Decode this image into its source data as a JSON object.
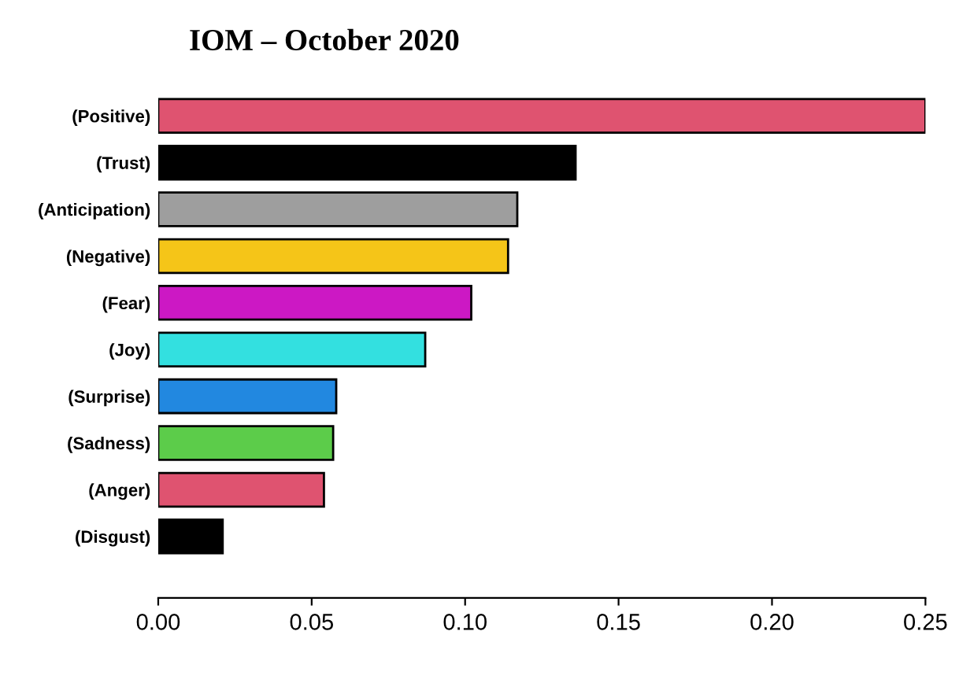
{
  "chart_data": {
    "type": "bar",
    "orientation": "horizontal",
    "title": "IOM – October 2020",
    "categories": [
      "(Positive)",
      "(Trust)",
      "(Anticipation)",
      "(Negative)",
      "(Fear)",
      "(Joy)",
      "(Surprise)",
      "(Sadness)",
      "(Anger)",
      "(Disgust)"
    ],
    "values": [
      0.25,
      0.136,
      0.117,
      0.114,
      0.102,
      0.087,
      0.058,
      0.057,
      0.054,
      0.021
    ],
    "colors": [
      "#df5370",
      "#000000",
      "#9e9e9e",
      "#f5c518",
      "#cc18c4",
      "#33e0e0",
      "#2288e0",
      "#5ccc4a",
      "#df5370",
      "#000000"
    ],
    "xlim": [
      0,
      0.25
    ],
    "xticks": [
      {
        "value": 0,
        "label": "0.00"
      },
      0.05,
      {
        "value": 0.1,
        "label": "0.10"
      },
      0.15,
      {
        "value": 0.2,
        "label": "0.20"
      },
      0.25
    ],
    "grid": false
  }
}
